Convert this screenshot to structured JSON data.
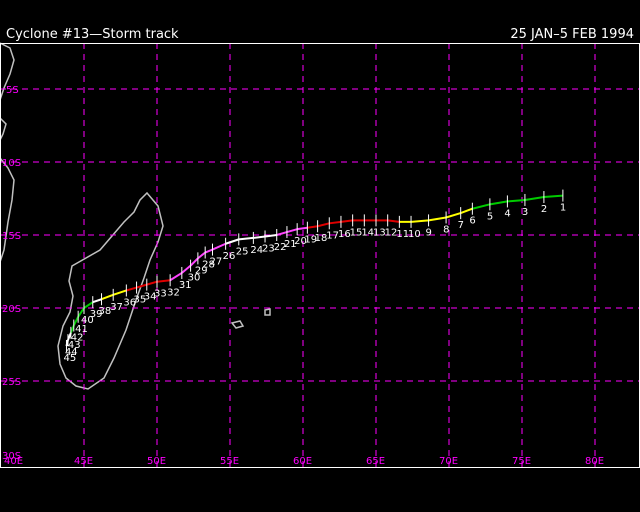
{
  "header": {
    "title": "Cyclone #13—Storm track",
    "dates": "25 JAN–5 FEB 1994"
  },
  "map": {
    "lat_labels": [
      "5S",
      "10S",
      "15S",
      "20S",
      "25S",
      "30S"
    ],
    "lon_labels": [
      "40E",
      "45E",
      "50E",
      "55E",
      "60E",
      "65E",
      "70E",
      "75E",
      "80E"
    ],
    "colors": {
      "grid": "#ff00ff",
      "coast": "#c0c0c0",
      "frame": "#ffffff",
      "track": {
        "green": "#00cc00",
        "yellow": "#ffff00",
        "red": "#dd0000",
        "magenta": "#ff44ff",
        "white": "#ffffff"
      }
    },
    "track": [
      {
        "day": "1",
        "lon": 77.8,
        "lat": -12.3,
        "c": "green"
      },
      {
        "day": "2",
        "lon": 76.5,
        "lat": -12.4,
        "c": "green"
      },
      {
        "day": "3",
        "lon": 75.2,
        "lat": -12.6,
        "c": "green"
      },
      {
        "day": "4",
        "lon": 74.0,
        "lat": -12.7,
        "c": "green"
      },
      {
        "day": "5",
        "lon": 72.8,
        "lat": -12.9,
        "c": "green"
      },
      {
        "day": "6",
        "lon": 71.6,
        "lat": -13.2,
        "c": "green"
      },
      {
        "day": "7",
        "lon": 70.8,
        "lat": -13.5,
        "c": "yellow"
      },
      {
        "day": "8",
        "lon": 69.8,
        "lat": -13.8,
        "c": "yellow"
      },
      {
        "day": "9",
        "lon": 68.6,
        "lat": -14.0,
        "c": "yellow"
      },
      {
        "day": "10",
        "lon": 67.4,
        "lat": -14.1,
        "c": "yellow"
      },
      {
        "day": "11",
        "lon": 66.6,
        "lat": -14.1,
        "c": "yellow"
      },
      {
        "day": "12",
        "lon": 65.8,
        "lat": -14.0,
        "c": "red"
      },
      {
        "day": "13",
        "lon": 65.0,
        "lat": -14.0,
        "c": "red"
      },
      {
        "day": "14",
        "lon": 64.2,
        "lat": -14.0,
        "c": "red"
      },
      {
        "day": "15",
        "lon": 63.4,
        "lat": -14.0,
        "c": "red"
      },
      {
        "day": "16",
        "lon": 62.6,
        "lat": -14.1,
        "c": "red"
      },
      {
        "day": "17",
        "lon": 61.8,
        "lat": -14.2,
        "c": "red"
      },
      {
        "day": "18",
        "lon": 61.0,
        "lat": -14.4,
        "c": "red"
      },
      {
        "day": "19",
        "lon": 60.3,
        "lat": -14.5,
        "c": "red"
      },
      {
        "day": "20",
        "lon": 59.6,
        "lat": -14.6,
        "c": "magenta"
      },
      {
        "day": "21",
        "lon": 58.9,
        "lat": -14.8,
        "c": "magenta"
      },
      {
        "day": "22",
        "lon": 58.2,
        "lat": -15.0,
        "c": "magenta"
      },
      {
        "day": "23",
        "lon": 57.4,
        "lat": -15.1,
        "c": "white"
      },
      {
        "day": "24",
        "lon": 56.6,
        "lat": -15.2,
        "c": "white"
      },
      {
        "day": "25",
        "lon": 55.6,
        "lat": -15.3,
        "c": "white"
      },
      {
        "day": "26",
        "lon": 54.7,
        "lat": -15.6,
        "c": "white"
      },
      {
        "day": "27",
        "lon": 53.8,
        "lat": -16.0,
        "c": "magenta"
      },
      {
        "day": "28",
        "lon": 53.3,
        "lat": -16.2,
        "c": "magenta"
      },
      {
        "day": "29",
        "lon": 52.8,
        "lat": -16.6,
        "c": "magenta"
      },
      {
        "day": "30",
        "lon": 52.3,
        "lat": -17.1,
        "c": "magenta"
      },
      {
        "day": "31",
        "lon": 51.7,
        "lat": -17.6,
        "c": "magenta"
      },
      {
        "day": "32",
        "lon": 50.9,
        "lat": -18.1,
        "c": "magenta"
      },
      {
        "day": "33",
        "lon": 50.0,
        "lat": -18.2,
        "c": "red"
      },
      {
        "day": "34",
        "lon": 49.3,
        "lat": -18.4,
        "c": "red"
      },
      {
        "day": "35",
        "lon": 48.6,
        "lat": -18.6,
        "c": "red"
      },
      {
        "day": "36",
        "lon": 47.9,
        "lat": -18.8,
        "c": "red"
      },
      {
        "day": "37",
        "lon": 47.0,
        "lat": -19.1,
        "c": "yellow"
      },
      {
        "day": "38",
        "lon": 46.2,
        "lat": -19.4,
        "c": "yellow"
      },
      {
        "day": "39",
        "lon": 45.6,
        "lat": -19.6,
        "c": "white"
      },
      {
        "day": "40",
        "lon": 45.0,
        "lat": -20.0,
        "c": "green"
      },
      {
        "day": "41",
        "lon": 44.6,
        "lat": -20.6,
        "c": "green"
      },
      {
        "day": "42",
        "lon": 44.3,
        "lat": -21.2,
        "c": "green"
      },
      {
        "day": "43",
        "lon": 44.1,
        "lat": -21.7,
        "c": "green"
      },
      {
        "day": "44",
        "lon": 43.9,
        "lat": -22.2,
        "c": "white"
      },
      {
        "day": "45",
        "lon": 43.8,
        "lat": -22.6,
        "c": "white"
      }
    ]
  }
}
